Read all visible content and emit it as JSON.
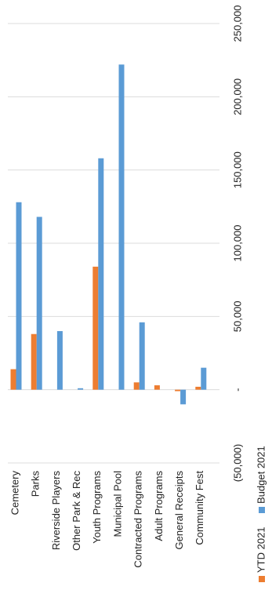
{
  "chart_data": {
    "type": "bar",
    "orientation": "horizontal",
    "rotated_90_clockwise": true,
    "categories": [
      "Cemetery",
      "Parks",
      "Riverside Players",
      "Other Park & Rec",
      "Youth Programs",
      "Municipal Pool",
      "Contracted Programs",
      "Adult Programs",
      "General Receipts",
      "Community Fest"
    ],
    "series": [
      {
        "name": "YTD 2021",
        "color": "#ED7D31",
        "values": [
          14000,
          38000,
          0,
          0,
          84000,
          0,
          5000,
          3000,
          -1000,
          2000
        ]
      },
      {
        "name": "Budget 2021",
        "color": "#5B9BD5",
        "values": [
          128000,
          118000,
          40000,
          1000,
          158000,
          222000,
          46000,
          0,
          -10000,
          15000
        ]
      }
    ],
    "tick_labels": [
      "(50,000)",
      "-",
      "50,000",
      "100,000",
      "150,000",
      "200,000",
      "250,000"
    ],
    "xlim": [
      -50000,
      250000
    ],
    "grid": true,
    "legend_position": "bottom"
  }
}
